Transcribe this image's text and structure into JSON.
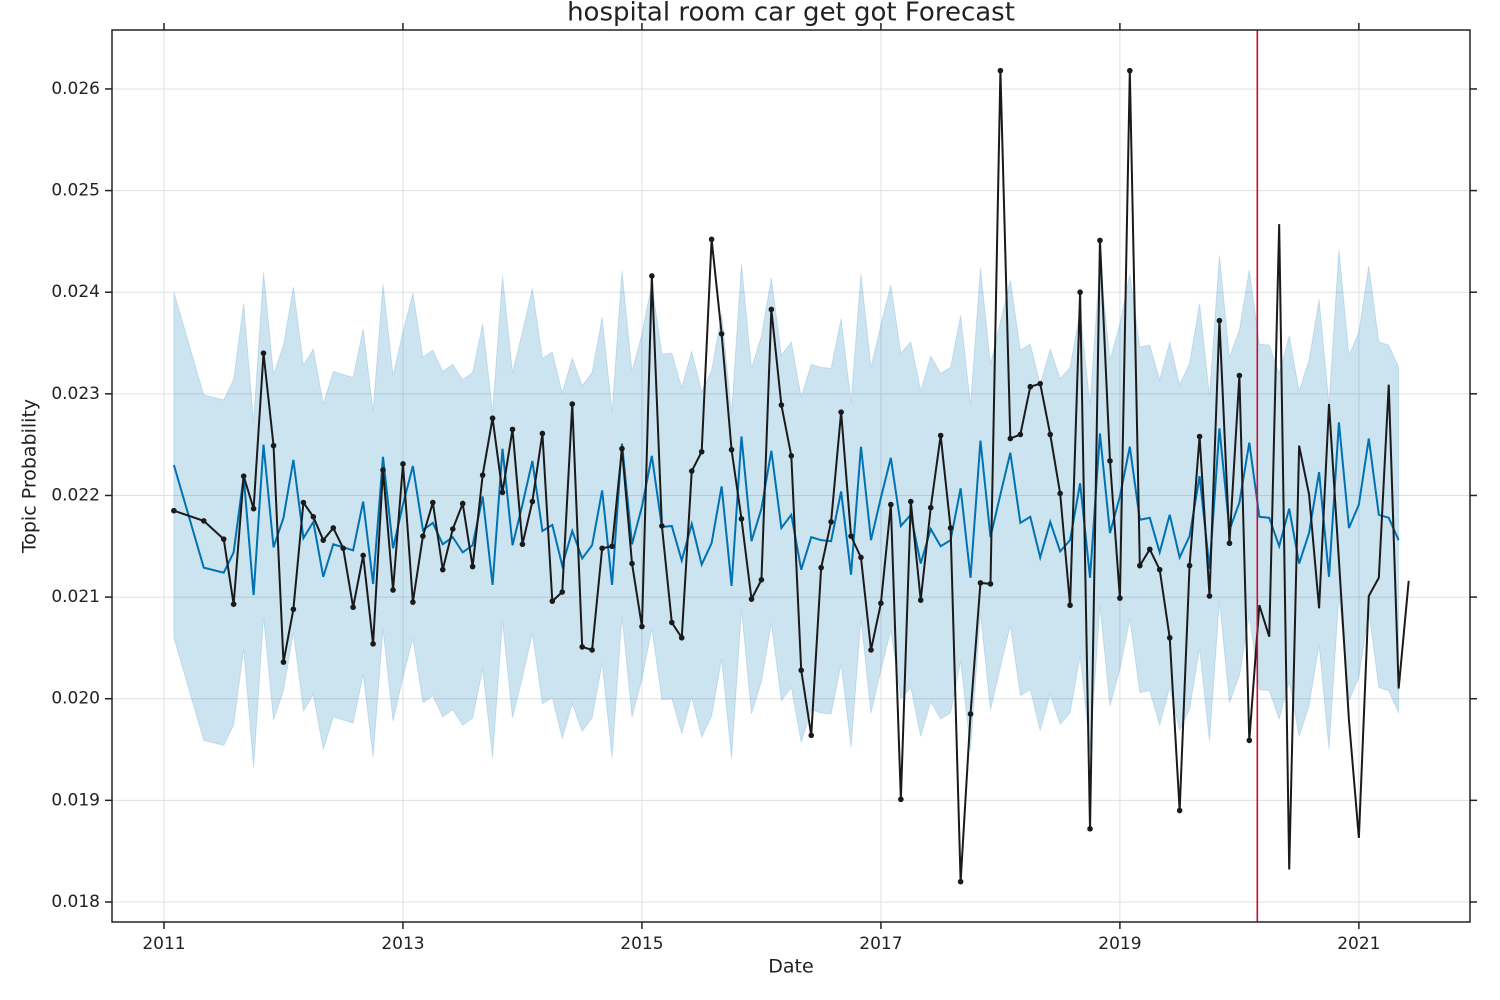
{
  "chart_data": {
    "type": "line",
    "title": "hospital room car get got Forecast",
    "xlabel": "Date",
    "ylabel": "Topic Probability",
    "xlim": [
      2010.565,
      2021.93
    ],
    "ylim": [
      0.017803,
      0.02658
    ],
    "xticks": [
      2011,
      2013,
      2015,
      2017,
      2019,
      2021
    ],
    "yticks": [
      0.018,
      0.019,
      {
        "value": 0.02,
        "label": "0.020"
      },
      0.021,
      0.022,
      0.023,
      0.024,
      0.025,
      0.026
    ],
    "grid": true,
    "vline": {
      "x": 2020.15,
      "color": "#c8102e"
    },
    "series": [
      {
        "color": "#0072b2",
        "band_color": "#0072b2",
        "x": [
          2011.083,
          2011.333,
          2011.5,
          2011.583,
          2011.667,
          2011.75,
          2011.833,
          2011.917,
          2012,
          2012.083,
          2012.167,
          2012.25,
          2012.333,
          2012.417,
          2012.5,
          2012.583,
          2012.667,
          2012.75,
          2012.833,
          2012.917,
          2013,
          2013.083,
          2013.167,
          2013.25,
          2013.333,
          2013.417,
          2013.5,
          2013.583,
          2013.667,
          2013.75,
          2013.833,
          2013.917,
          2014,
          2014.083,
          2014.167,
          2014.25,
          2014.333,
          2014.417,
          2014.5,
          2014.583,
          2014.667,
          2014.75,
          2014.833,
          2014.917,
          2015,
          2015.083,
          2015.167,
          2015.25,
          2015.333,
          2015.417,
          2015.5,
          2015.583,
          2015.667,
          2015.75,
          2015.833,
          2015.917,
          2016,
          2016.083,
          2016.167,
          2016.25,
          2016.333,
          2016.417,
          2016.5,
          2016.583,
          2016.667,
          2016.75,
          2016.833,
          2016.917,
          2017,
          2017.083,
          2017.167,
          2017.25,
          2017.333,
          2017.417,
          2017.5,
          2017.583,
          2017.667,
          2017.75,
          2017.833,
          2017.917,
          2018,
          2018.083,
          2018.167,
          2018.25,
          2018.333,
          2018.417,
          2018.5,
          2018.583,
          2018.667,
          2018.75,
          2018.833,
          2018.917,
          2019,
          2019.083,
          2019.167,
          2019.25,
          2019.333,
          2019.417,
          2019.5,
          2019.583,
          2019.667,
          2019.75,
          2019.833,
          2019.917,
          2020,
          2020.083,
          2020.167,
          2020.25,
          2020.333,
          2020.417,
          2020.5,
          2020.583,
          2020.667,
          2020.75,
          2020.833,
          2020.917,
          2021,
          2021.083,
          2021.167,
          2021.25,
          2021.333
        ],
        "values": [
          0.0223,
          0.02129,
          0.02124,
          0.02144,
          0.02219,
          0.02102,
          0.0225,
          0.02149,
          0.02178,
          0.02235,
          0.02158,
          0.02174,
          0.0212,
          0.02152,
          0.02149,
          0.02146,
          0.02194,
          0.02113,
          0.02238,
          0.02148,
          0.02191,
          0.02229,
          0.02166,
          0.02173,
          0.02152,
          0.02159,
          0.02144,
          0.02151,
          0.02199,
          0.02112,
          0.02246,
          0.02151,
          0.02191,
          0.02234,
          0.02165,
          0.02171,
          0.02131,
          0.02165,
          0.02138,
          0.02151,
          0.02205,
          0.02112,
          0.02251,
          0.02152,
          0.02189,
          0.02239,
          0.02169,
          0.0217,
          0.02136,
          0.02172,
          0.02132,
          0.02153,
          0.02209,
          0.02111,
          0.02258,
          0.02155,
          0.02187,
          0.02244,
          0.02168,
          0.02181,
          0.02127,
          0.02159,
          0.02156,
          0.02155,
          0.02204,
          0.02122,
          0.02248,
          0.02156,
          0.02198,
          0.02237,
          0.0217,
          0.02181,
          0.02133,
          0.02167,
          0.0215,
          0.02156,
          0.02207,
          0.02119,
          0.02254,
          0.02159,
          0.02201,
          0.02242,
          0.02173,
          0.02179,
          0.02139,
          0.02174,
          0.02145,
          0.02156,
          0.02212,
          0.02119,
          0.02261,
          0.02163,
          0.02199,
          0.02248,
          0.02176,
          0.02178,
          0.02144,
          0.02181,
          0.02139,
          0.0216,
          0.02219,
          0.02128,
          0.02266,
          0.02166,
          0.02193,
          0.02252,
          0.02179,
          0.02178,
          0.0215,
          0.02187,
          0.02133,
          0.02163,
          0.02223,
          0.0212,
          0.02272,
          0.02168,
          0.02191,
          0.02256,
          0.02181,
          0.02178,
          0.02156
        ],
        "upper": [
          0.024,
          0.02299,
          0.02294,
          0.02314,
          0.02389,
          0.02272,
          0.0242,
          0.02319,
          0.02348,
          0.02405,
          0.02328,
          0.02344,
          0.0229,
          0.02322,
          0.02319,
          0.02316,
          0.02364,
          0.02283,
          0.02408,
          0.02318,
          0.02361,
          0.02399,
          0.02336,
          0.02343,
          0.02322,
          0.02329,
          0.02314,
          0.02321,
          0.02369,
          0.02282,
          0.02416,
          0.02321,
          0.02361,
          0.02404,
          0.02335,
          0.02341,
          0.02301,
          0.02335,
          0.02308,
          0.02321,
          0.02375,
          0.02282,
          0.02421,
          0.02322,
          0.02359,
          0.02409,
          0.02339,
          0.0234,
          0.02306,
          0.02342,
          0.02302,
          0.02323,
          0.02379,
          0.02281,
          0.02428,
          0.02325,
          0.02357,
          0.02414,
          0.02338,
          0.02351,
          0.02297,
          0.02329,
          0.02326,
          0.02325,
          0.02374,
          0.02292,
          0.02418,
          0.02326,
          0.02368,
          0.02407,
          0.0234,
          0.02351,
          0.02303,
          0.02337,
          0.0232,
          0.02326,
          0.02377,
          0.02289,
          0.02424,
          0.02329,
          0.02371,
          0.02412,
          0.02343,
          0.02349,
          0.02309,
          0.02344,
          0.02315,
          0.02326,
          0.02382,
          0.02289,
          0.02431,
          0.02333,
          0.02369,
          0.02418,
          0.02346,
          0.02348,
          0.02314,
          0.02351,
          0.02309,
          0.0233,
          0.02389,
          0.02298,
          0.02436,
          0.02336,
          0.02363,
          0.02422,
          0.02349,
          0.02348,
          0.0232,
          0.02357,
          0.02303,
          0.02333,
          0.02393,
          0.0229,
          0.02442,
          0.02338,
          0.02361,
          0.02426,
          0.02351,
          0.02348,
          0.02326
        ],
        "lower": [
          0.0206,
          0.01959,
          0.01954,
          0.01974,
          0.02049,
          0.01932,
          0.0208,
          0.01979,
          0.02008,
          0.02065,
          0.01988,
          0.02004,
          0.0195,
          0.01982,
          0.01979,
          0.01976,
          0.02024,
          0.01943,
          0.02068,
          0.01978,
          0.02021,
          0.02059,
          0.01996,
          0.02003,
          0.01982,
          0.01989,
          0.01974,
          0.01981,
          0.02029,
          0.01942,
          0.02076,
          0.01981,
          0.02021,
          0.02064,
          0.01995,
          0.02001,
          0.01961,
          0.01995,
          0.01968,
          0.01981,
          0.02035,
          0.01942,
          0.02081,
          0.01982,
          0.02019,
          0.02069,
          0.01999,
          0.02,
          0.01966,
          0.02002,
          0.01962,
          0.01983,
          0.02039,
          0.01941,
          0.02088,
          0.01985,
          0.02017,
          0.02074,
          0.01998,
          0.02011,
          0.01957,
          0.01989,
          0.01986,
          0.01985,
          0.02034,
          0.01952,
          0.02078,
          0.01986,
          0.02028,
          0.02067,
          0.02,
          0.02011,
          0.01963,
          0.01997,
          0.0198,
          0.01986,
          0.02037,
          0.01949,
          0.02084,
          0.01989,
          0.02031,
          0.02072,
          0.02003,
          0.02009,
          0.01969,
          0.02004,
          0.01975,
          0.01986,
          0.02042,
          0.01949,
          0.02091,
          0.01993,
          0.02029,
          0.02078,
          0.02006,
          0.02008,
          0.01974,
          0.02011,
          0.01969,
          0.0199,
          0.02049,
          0.01958,
          0.02096,
          0.01996,
          0.02023,
          0.02082,
          0.02009,
          0.02008,
          0.0198,
          0.02017,
          0.01963,
          0.01993,
          0.02053,
          0.0195,
          0.02102,
          0.01998,
          0.02021,
          0.02086,
          0.02011,
          0.02008,
          0.01986
        ]
      },
      {
        "color": "#1a1a1a",
        "markers": true,
        "x": [
          2011.083,
          2011.333,
          2011.5,
          2011.583,
          2011.667,
          2011.75,
          2011.833,
          2011.917,
          2012,
          2012.083,
          2012.167,
          2012.25,
          2012.333,
          2012.417,
          2012.5,
          2012.583,
          2012.667,
          2012.75,
          2012.833,
          2012.917,
          2013,
          2013.083,
          2013.167,
          2013.25,
          2013.333,
          2013.417,
          2013.5,
          2013.583,
          2013.667,
          2013.75,
          2013.833,
          2013.917,
          2014,
          2014.083,
          2014.167,
          2014.25,
          2014.333,
          2014.417,
          2014.5,
          2014.583,
          2014.667,
          2014.75,
          2014.833,
          2014.917,
          2015,
          2015.083,
          2015.167,
          2015.25,
          2015.333,
          2015.417,
          2015.5,
          2015.583,
          2015.667,
          2015.75,
          2015.833,
          2015.917,
          2016,
          2016.083,
          2016.167,
          2016.25,
          2016.333,
          2016.417,
          2016.5,
          2016.583,
          2016.667,
          2016.75,
          2016.833,
          2016.917,
          2017,
          2017.083,
          2017.167,
          2017.25,
          2017.333,
          2017.417,
          2017.5,
          2017.583,
          2017.667,
          2017.75,
          2017.833,
          2017.917,
          2018,
          2018.083,
          2018.167,
          2018.25,
          2018.333,
          2018.417,
          2018.5,
          2018.583,
          2018.667,
          2018.75,
          2018.833,
          2018.917,
          2019,
          2019.083,
          2019.167,
          2019.25,
          2019.333,
          2019.417,
          2019.5,
          2019.583,
          2019.667,
          2019.75,
          2019.833,
          2019.917,
          2020,
          2020.083,
          2020.167,
          2020.25,
          2020.333,
          2020.417,
          2020.5,
          2020.583,
          2020.667,
          2020.75,
          2020.833,
          2020.917,
          2021,
          2021.083,
          2021.167,
          2021.25,
          2021.333,
          2021.417
        ],
        "values": [
          0.02185,
          0.02175,
          0.02157,
          0.02093,
          0.02219,
          0.02187,
          0.0234,
          0.02249,
          0.02036,
          0.02088,
          0.02193,
          0.02179,
          0.02156,
          0.02168,
          0.02148,
          0.0209,
          0.02141,
          0.02054,
          0.02225,
          0.02107,
          0.02231,
          0.02095,
          0.0216,
          0.02193,
          0.02127,
          0.02167,
          0.02192,
          0.0213,
          0.0222,
          0.02276,
          0.02203,
          0.02265,
          0.02152,
          0.02194,
          0.02261,
          0.02096,
          0.02105,
          0.0229,
          0.02051,
          0.02048,
          0.02148,
          0.0215,
          0.02246,
          0.02133,
          0.02071,
          0.02416,
          0.0217,
          0.02075,
          0.0206,
          0.02224,
          0.02243,
          0.02452,
          0.02359,
          0.02245,
          0.02177,
          0.02098,
          0.02117,
          0.02383,
          0.02289,
          0.02239,
          0.02028,
          0.01964,
          0.02129,
          0.02174,
          0.02282,
          0.0216,
          0.02139,
          0.02048,
          0.02094,
          0.02191,
          0.01901,
          0.02194,
          0.02097,
          0.02188,
          0.02259,
          0.02168,
          0.0182,
          0.01985,
          0.02114,
          0.02113,
          0.02618,
          0.02256,
          0.0226,
          0.02307,
          0.0231,
          0.0226,
          0.02202,
          0.02092,
          0.024,
          0.01872,
          0.02451,
          0.02234,
          0.02099,
          0.02618,
          0.02131,
          0.02147,
          0.02127,
          0.0206,
          0.0189,
          0.02131,
          0.02258,
          0.02101,
          0.02372,
          0.02153,
          0.02318,
          0.01959,
          0.02092,
          0.02061,
          0.02467,
          0.01832,
          0.02249,
          0.02201,
          0.02089,
          0.0229,
          0.02136,
          0.01979,
          0.01863,
          0.02101,
          0.02119,
          0.02309,
          0.0201,
          0.02116
        ]
      }
    ]
  }
}
